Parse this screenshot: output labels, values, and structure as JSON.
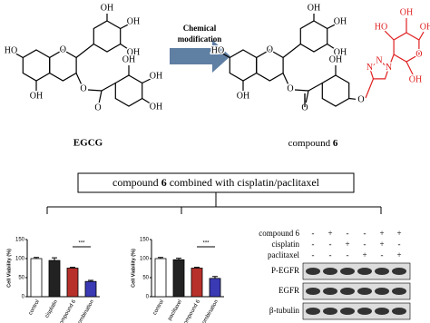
{
  "reaction": {
    "arrow_label": [
      "Chemical",
      "modification"
    ],
    "egcg": {
      "label": "EGCG",
      "atoms": [
        "HO",
        "OH",
        "O",
        "OH",
        "OH",
        "OH",
        "O",
        "O",
        "OH",
        "OH",
        "OH"
      ]
    },
    "compound6": {
      "label": "compound",
      "label_number": "6",
      "atoms": [
        "HO",
        "OH",
        "O",
        "OH",
        "OH",
        "OH",
        "O",
        "O",
        "OH",
        "O",
        "N",
        "N",
        "N",
        "HO",
        "OH",
        "OH",
        "O",
        "OH"
      ]
    }
  },
  "combination": {
    "title_before": "compound",
    "title_number": "6",
    "title_after": "combined with cisplatin/paclitaxel"
  },
  "chart_data": [
    {
      "type": "bar",
      "y_label": "Cell Viability (%)",
      "categories": [
        "control",
        "cisplatin",
        "compound 6",
        "combination"
      ],
      "values": [
        100,
        95,
        75,
        40
      ],
      "errors": [
        3,
        7,
        2,
        3
      ],
      "colors": [
        "#ffffff",
        "#222222",
        "#b8302a",
        "#3a3ab4"
      ],
      "ylim": [
        0,
        150
      ],
      "yticks": [
        0,
        50,
        100,
        150
      ],
      "annotation": "***"
    },
    {
      "type": "bar",
      "y_label": "Cell Viability (%)",
      "categories": [
        "control",
        "paclitaxel",
        "compound 6",
        "combination"
      ],
      "values": [
        100,
        97,
        75,
        48
      ],
      "errors": [
        3,
        4,
        2,
        5
      ],
      "colors": [
        "#ffffff",
        "#222222",
        "#b8302a",
        "#3a3ab4"
      ],
      "ylim": [
        0,
        150
      ],
      "yticks": [
        0,
        50,
        100,
        150
      ],
      "annotation": "***"
    }
  ],
  "blot": {
    "conditions": [
      {
        "name": "compound 6",
        "signs": [
          "-",
          "+",
          "-",
          "-",
          "+",
          "+"
        ]
      },
      {
        "name": "cisplatin",
        "signs": [
          "-",
          "-",
          "+",
          "-",
          "+",
          "-"
        ]
      },
      {
        "name": "paclitaxel",
        "signs": [
          "-",
          "-",
          "-",
          "+",
          "-",
          "+"
        ]
      }
    ],
    "bands": [
      "P-EGFR",
      "EGFR",
      "β-tubulin"
    ]
  }
}
